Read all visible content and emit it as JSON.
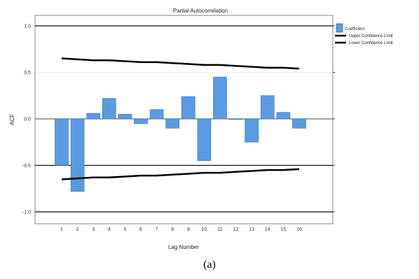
{
  "chart_data": {
    "type": "bar",
    "title": "Partial Autocorrelation",
    "xlabel": "Lag Number",
    "ylabel": "ACF",
    "categories": [
      "1",
      "2",
      "3",
      "4",
      "5",
      "6",
      "7",
      "8",
      "9",
      "10",
      "11",
      "12",
      "13",
      "14",
      "15",
      "16"
    ],
    "series": [
      {
        "name": "Coefficient",
        "values": [
          -0.5,
          -0.78,
          0.06,
          0.22,
          0.05,
          -0.05,
          0.1,
          -0.1,
          0.24,
          -0.45,
          0.45,
          0.0,
          -0.25,
          0.25,
          0.07,
          -0.1
        ]
      },
      {
        "name": "Upper Confidence Limit",
        "values": [
          0.65,
          0.64,
          0.63,
          0.63,
          0.62,
          0.61,
          0.61,
          0.6,
          0.59,
          0.58,
          0.58,
          0.57,
          0.56,
          0.55,
          0.55,
          0.54
        ]
      },
      {
        "name": "Lower Confidence Limit",
        "values": [
          -0.65,
          -0.64,
          -0.63,
          -0.63,
          -0.62,
          -0.61,
          -0.61,
          -0.6,
          -0.59,
          -0.58,
          -0.58,
          -0.57,
          -0.56,
          -0.55,
          -0.55,
          -0.54
        ]
      }
    ],
    "yticks": [
      1.0,
      0.5,
      0.0,
      -0.5,
      -1.0
    ],
    "ylim": [
      -1.0,
      1.0
    ],
    "grid": true,
    "legend_position": "top-right",
    "colors": {
      "bars": "#5b9be0",
      "bar_edge": "#2e6fb8",
      "limits": "#000000",
      "frame": "#444444"
    }
  },
  "caption": "(a)"
}
